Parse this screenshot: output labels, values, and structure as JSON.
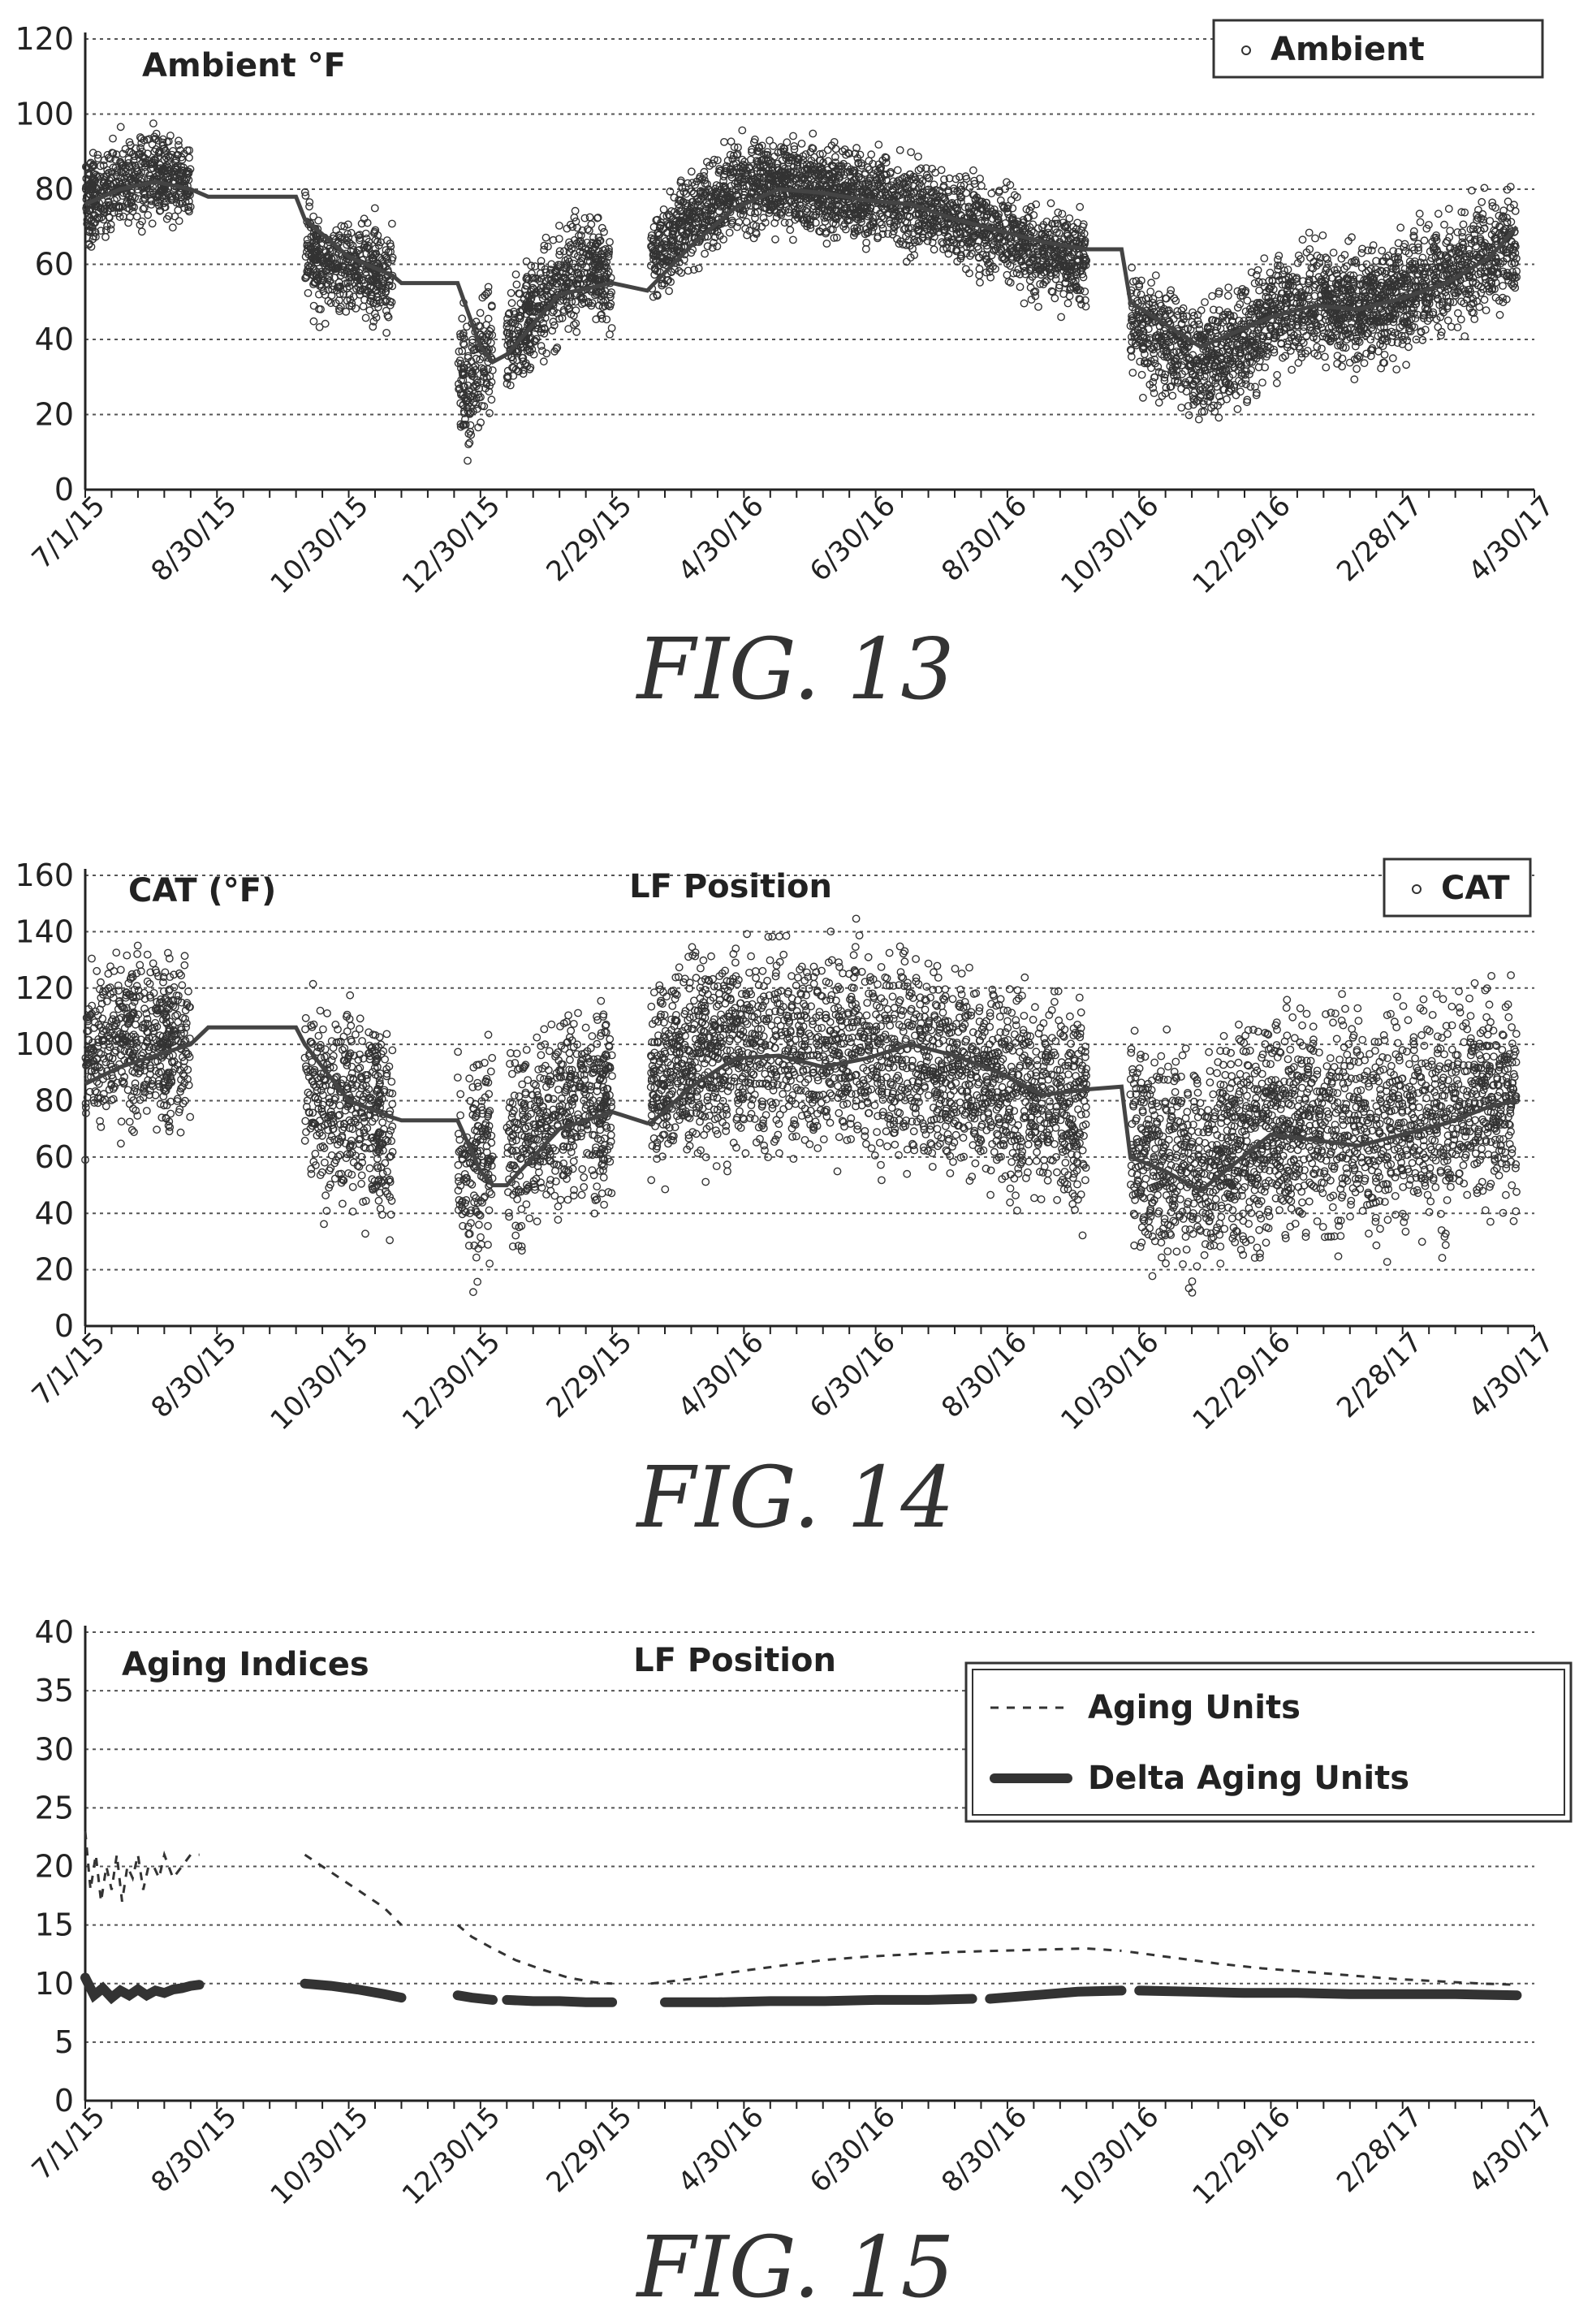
{
  "chart_data": [
    {
      "type": "scatter",
      "figure_label": "FIG. 13",
      "title": "Ambient °F",
      "subtitle": "",
      "ylim": [
        0,
        120
      ],
      "yticks": [
        0,
        20,
        40,
        60,
        80,
        100,
        120
      ],
      "grid": true,
      "legend_position": "top-right",
      "x_tick_labels": [
        "7/1/15",
        "8/30/15",
        "10/30/15",
        "12/30/15",
        "2/29/15",
        "4/30/16",
        "6/30/16",
        "8/30/16",
        "10/30/16",
        "12/29/16",
        "2/28/17",
        "4/30/17"
      ],
      "series": [
        {
          "name": "Ambient",
          "style": "scatter",
          "segments": [
            {
              "x": [
                0,
                20,
                40,
                60
              ],
              "center": [
                76,
                82,
                84,
                81
              ],
              "spread": 11
            },
            {
              "x": [
                125,
                135,
                150,
                165,
                175
              ],
              "center": [
                66,
                58,
                60,
                58,
                55
              ],
              "spread": 13
            },
            {
              "x": [
                212,
                218,
                225,
                232
              ],
              "center": [
                33,
                25,
                36,
                38
              ],
              "spread": 17
            },
            {
              "x": [
                240,
                255,
                270,
                285,
                300
              ],
              "center": [
                38,
                47,
                55,
                60,
                56
              ],
              "spread": 14
            },
            {
              "x": [
                322,
                345,
                370,
                395,
                420,
                445,
                470,
                495,
                520,
                545,
                570
              ],
              "center": [
                62,
                72,
                80,
                82,
                80,
                78,
                75,
                72,
                68,
                63,
                60
              ],
              "spread": 12
            },
            {
              "x": [
                595,
                615,
                635,
                655,
                675,
                700,
                725,
                750,
                775,
                800,
                815
              ],
              "center": [
                45,
                40,
                33,
                38,
                46,
                50,
                48,
                52,
                57,
                62,
                67
              ],
              "spread": 15
            }
          ]
        },
        {
          "name": "",
          "style": "line",
          "x": [
            0,
            20,
            40,
            60,
            70,
            120,
            125,
            150,
            175,
            180,
            212,
            225,
            232,
            240,
            270,
            300,
            320,
            322,
            345,
            370,
            395,
            420,
            445,
            470,
            495,
            520,
            545,
            570,
            590,
            595,
            615,
            635,
            655,
            675,
            700,
            725,
            750,
            775,
            800,
            815
          ],
          "y": [
            76,
            80,
            82,
            80,
            78,
            78,
            72,
            62,
            57,
            55,
            55,
            38,
            34,
            36,
            52,
            55,
            53,
            54,
            65,
            75,
            80,
            79,
            77,
            76,
            72,
            69,
            66,
            64,
            64,
            50,
            44,
            38,
            42,
            46,
            49,
            48,
            51,
            55,
            62,
            70
          ]
        }
      ]
    },
    {
      "type": "scatter",
      "figure_label": "FIG. 14",
      "title": "CAT (°F)",
      "subtitle": "LF Position",
      "ylim": [
        0,
        160
      ],
      "yticks": [
        0,
        20,
        40,
        60,
        80,
        100,
        120,
        140,
        160
      ],
      "grid": true,
      "legend_position": "top-right",
      "x_tick_labels": [
        "7/1/15",
        "8/30/15",
        "10/30/15",
        "12/30/15",
        "2/29/15",
        "4/30/16",
        "6/30/16",
        "8/30/16",
        "10/30/16",
        "12/29/16",
        "2/28/17",
        "4/30/17"
      ],
      "series": [
        {
          "name": "CAT",
          "style": "scatter",
          "segments": [
            {
              "x": [
                0,
                20,
                40,
                60
              ],
              "center": [
                95,
                102,
                100,
                98
              ],
              "spread": 30
            },
            {
              "x": [
                125,
                135,
                150,
                165,
                175
              ],
              "center": [
                88,
                78,
                80,
                75,
                70
              ],
              "spread": 35
            },
            {
              "x": [
                212,
                218,
                225,
                232
              ],
              "center": [
                55,
                45,
                60,
                62
              ],
              "spread": 35
            },
            {
              "x": [
                240,
                255,
                270,
                285,
                300
              ],
              "center": [
                60,
                68,
                78,
                82,
                75
              ],
              "spread": 33
            },
            {
              "x": [
                322,
                345,
                370,
                395,
                420,
                445,
                470,
                495,
                520,
                545,
                570
              ],
              "center": [
                85,
                95,
                100,
                98,
                97,
                98,
                95,
                90,
                85,
                80,
                78
              ],
              "spread": 35
            },
            {
              "x": [
                595,
                615,
                635,
                655,
                675,
                700,
                725,
                750,
                775,
                800,
                815
              ],
              "center": [
                65,
                60,
                55,
                65,
                70,
                72,
                70,
                72,
                75,
                80,
                82
              ],
              "spread": 38
            }
          ]
        },
        {
          "name": "",
          "style": "line",
          "x": [
            0,
            20,
            40,
            60,
            70,
            120,
            125,
            150,
            175,
            180,
            212,
            225,
            232,
            240,
            270,
            300,
            320,
            322,
            345,
            370,
            395,
            420,
            445,
            470,
            495,
            520,
            545,
            570,
            590,
            595,
            615,
            635,
            655,
            675,
            700,
            725,
            750,
            775,
            800,
            815
          ],
          "y": [
            86,
            92,
            96,
            100,
            106,
            106,
            100,
            80,
            74,
            73,
            73,
            55,
            50,
            50,
            70,
            76,
            72,
            72,
            85,
            95,
            96,
            92,
            95,
            100,
            96,
            90,
            82,
            84,
            85,
            60,
            55,
            48,
            58,
            68,
            66,
            64,
            68,
            72,
            78,
            80
          ]
        }
      ]
    },
    {
      "type": "line",
      "figure_label": "FIG. 15",
      "title": "Aging Indices",
      "subtitle": "LF Position",
      "ylim": [
        0,
        40
      ],
      "yticks": [
        0,
        5,
        10,
        15,
        20,
        25,
        30,
        35,
        40
      ],
      "grid": true,
      "legend_position": "top-right",
      "x_tick_labels": [
        "7/1/15",
        "8/30/15",
        "10/30/15",
        "12/30/15",
        "2/29/15",
        "4/30/16",
        "6/30/16",
        "8/30/16",
        "10/30/16",
        "12/29/16",
        "2/28/17",
        "4/30/17"
      ],
      "series": [
        {
          "name": "Aging Units",
          "style": "dashed",
          "segments": [
            {
              "x": [
                0,
                3,
                6,
                9,
                12,
                15,
                18,
                21,
                24,
                27,
                30,
                33,
                36,
                39,
                42,
                45,
                50,
                55,
                60,
                65
              ],
              "y": [
                23,
                18,
                21,
                17,
                20,
                18,
                21,
                17,
                20,
                19,
                21,
                18,
                20,
                20,
                19,
                21,
                19,
                20,
                21,
                21
              ]
            },
            {
              "x": [
                125,
                140,
                155,
                170,
                180
              ],
              "y": [
                21,
                19.5,
                18,
                16.5,
                15
              ]
            },
            {
              "x": [
                212,
                220,
                232,
                245,
                260,
                275,
                290,
                300
              ],
              "y": [
                15,
                14,
                13,
                12,
                11.2,
                10.5,
                10.1,
                10
              ]
            },
            {
              "x": [
                322,
                345,
                370,
                395,
                420,
                445,
                470,
                495,
                520,
                545,
                570,
                590
              ],
              "y": [
                10,
                10.4,
                11,
                11.5,
                12,
                12.3,
                12.5,
                12.7,
                12.8,
                12.9,
                13,
                12.8
              ]
            },
            {
              "x": [
                595,
                620,
                645,
                670,
                695,
                720,
                745,
                770,
                795,
                815
              ],
              "y": [
                12.7,
                12.2,
                11.7,
                11.3,
                11,
                10.7,
                10.4,
                10.2,
                10,
                9.9
              ]
            }
          ]
        },
        {
          "name": "Delta Aging Units",
          "style": "thick",
          "segments": [
            {
              "x": [
                0,
                5,
                10,
                15,
                20,
                25,
                30,
                35,
                40,
                45,
                50,
                55,
                60,
                65
              ],
              "y": [
                10.5,
                9,
                9.6,
                8.8,
                9.4,
                9,
                9.5,
                9,
                9.4,
                9.2,
                9.5,
                9.6,
                9.8,
                9.9
              ]
            },
            {
              "x": [
                125,
                140,
                155,
                170,
                180
              ],
              "y": [
                10,
                9.8,
                9.5,
                9.1,
                8.8
              ]
            },
            {
              "x": [
                212,
                220,
                232
              ],
              "y": [
                9,
                8.8,
                8.6
              ]
            },
            {
              "x": [
                240,
                255,
                270,
                285,
                300
              ],
              "y": [
                8.6,
                8.5,
                8.5,
                8.4,
                8.4
              ]
            },
            {
              "x": [
                330,
                360,
                390,
                420,
                450,
                480,
                505
              ],
              "y": [
                8.4,
                8.4,
                8.5,
                8.5,
                8.6,
                8.6,
                8.7
              ]
            },
            {
              "x": [
                515,
                540,
                565,
                590
              ],
              "y": [
                8.7,
                9,
                9.3,
                9.4
              ]
            },
            {
              "x": [
                600,
                630,
                660,
                690,
                720,
                750,
                780,
                815
              ],
              "y": [
                9.4,
                9.3,
                9.2,
                9.2,
                9.1,
                9.1,
                9.1,
                9
              ]
            }
          ]
        }
      ]
    }
  ]
}
